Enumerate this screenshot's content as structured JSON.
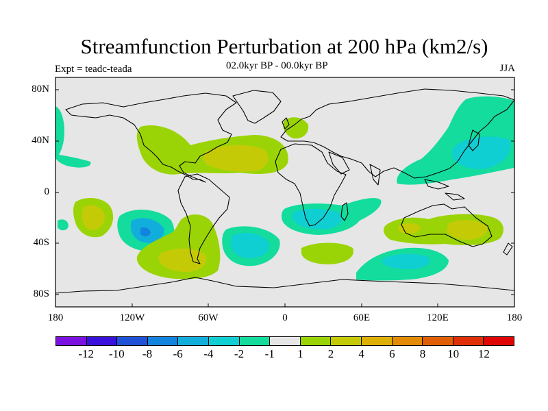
{
  "title": "Streamfunction Perturbation at 200 hPa (km2/s)",
  "left_subtitle": "Expt = teadc-teada",
  "center_subtitle": "02.0kyr BP - 00.0kyr BP",
  "right_subtitle": "JJA",
  "lat_ticks": [
    "80N",
    "40N",
    "0",
    "40S",
    "80S"
  ],
  "lon_ticks": [
    "180",
    "120W",
    "60W",
    "0",
    "60E",
    "120E",
    "180"
  ],
  "colorbar": {
    "colors": [
      "#7a11e0",
      "#3a10dc",
      "#1f52d6",
      "#1384de",
      "#11aedc",
      "#10cfd2",
      "#13dc9c",
      "#e6e6e6",
      "#9ad406",
      "#c4cb06",
      "#ddb006",
      "#e38a06",
      "#e05f06",
      "#e02f06",
      "#e00606"
    ],
    "labels": [
      "-12",
      "-10",
      "-8",
      "-6",
      "-4",
      "-2",
      "-1",
      "1",
      "2",
      "4",
      "6",
      "8",
      "10",
      "12"
    ]
  },
  "map": {
    "background": "#e6e6e6"
  }
}
